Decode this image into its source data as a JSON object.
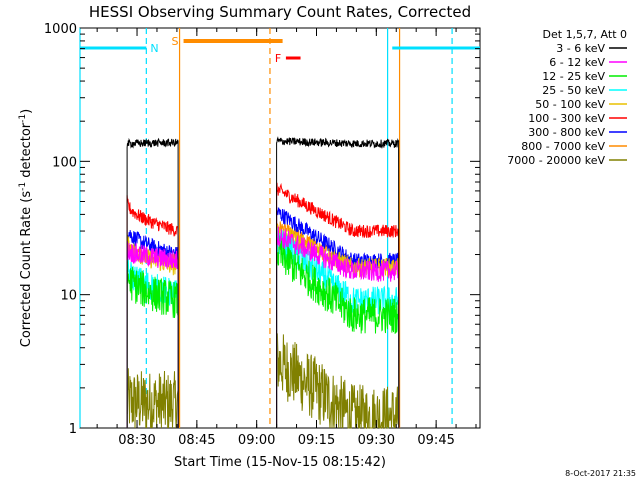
{
  "chart_data": {
    "type": "line",
    "title": "HESSI Observing Summary Count Rates, Corrected",
    "xlabel": "Start Time (15-Nov-15 08:15:42)",
    "ylabel_main": "Corrected Count Rate (s",
    "ylabel_sup1": "-1",
    "ylabel_mid": " detector",
    "ylabel_sup2": "-1",
    "ylabel_end": ")",
    "y_scale": "log",
    "ylim": [
      1,
      1000
    ],
    "xlim": [
      "08:15:42",
      "09:56:00"
    ],
    "x_ticks": [
      "08:30",
      "08:45",
      "09:00",
      "09:15",
      "09:30",
      "09:45"
    ],
    "y_ticks": [
      "1",
      "10",
      "100",
      "1000"
    ],
    "legend_header": "Det 1,5,7, Att 0",
    "legend_position": "right",
    "timestamp": "8-Oct-2017 21:35",
    "flag_labels": {
      "N": "N",
      "S": "S",
      "F": "F"
    },
    "flag_colors": {
      "N": "#00e0ff",
      "S": "#ff8c00",
      "F": "#ff0000"
    },
    "flags": {
      "N_intervals": [
        [
          "08:15:42",
          "08:32:20"
        ],
        [
          "09:34:00",
          "09:56:00"
        ]
      ],
      "S_interval": [
        "08:41:40",
        "09:06:30"
      ],
      "F_interval": [
        "09:07:20",
        "09:11:00"
      ]
    },
    "vertical_markers": [
      {
        "time": "08:15:42",
        "color": "#00e0ff",
        "style": "solid"
      },
      {
        "time": "08:32:20",
        "color": "#00e0ff",
        "style": "dashed"
      },
      {
        "time": "08:40:40",
        "color": "#ff8c00",
        "style": "solid"
      },
      {
        "time": "09:03:20",
        "color": "#ff8c00",
        "style": "dashed"
      },
      {
        "time": "09:32:50",
        "color": "#00e0ff",
        "style": "solid"
      },
      {
        "time": "09:35:50",
        "color": "#ff8c00",
        "style": "solid"
      },
      {
        "time": "09:49:00",
        "color": "#00e0ff",
        "style": "dashed"
      }
    ],
    "data_gaps": [
      [
        "08:15:42",
        "08:27:30"
      ],
      [
        "08:40:20",
        "09:05:00"
      ],
      [
        "09:35:40",
        "09:56:00"
      ]
    ],
    "segments": [
      [
        "08:27:30",
        "08:40:20"
      ],
      [
        "09:05:00",
        "09:35:40"
      ]
    ],
    "series": [
      {
        "name": "3 - 6 keV",
        "color": "#000000",
        "seg1": [
          135,
          138
        ],
        "seg2": [
          142,
          136
        ],
        "noise": 0.03,
        "bump": 0
      },
      {
        "name": "6 - 12 keV",
        "color": "#ff00ff",
        "seg1": [
          22,
          18
        ],
        "seg2": [
          28,
          15
        ],
        "noise": 0.08,
        "bump": 0
      },
      {
        "name": "12 - 25 keV",
        "color": "#00ee00",
        "seg1": [
          14,
          9
        ],
        "seg2": [
          21,
          7
        ],
        "noise": 0.14,
        "bump": 0
      },
      {
        "name": "25 - 50 keV",
        "color": "#00ffff",
        "seg1": [
          16,
          10
        ],
        "seg2": [
          26,
          9
        ],
        "noise": 0.11,
        "bump": 0
      },
      {
        "name": "50 - 100 keV",
        "color": "#e8c000",
        "seg1": [
          25,
          16
        ],
        "seg2": [
          30,
          16
        ],
        "noise": 0.07,
        "bump": 0
      },
      {
        "name": "100 - 300 keV",
        "color": "#ff0000",
        "seg1": [
          50,
          30
        ],
        "seg2": [
          62,
          30
        ],
        "noise": 0.05,
        "bump": 0
      },
      {
        "name": "300 - 800 keV",
        "color": "#0000ff",
        "seg1": [
          32,
          20
        ],
        "seg2": [
          42,
          18
        ],
        "noise": 0.06,
        "bump": 0
      },
      {
        "name": "800 - 7000 keV",
        "color": "#ff8c00",
        "seg1": [
          24,
          18
        ],
        "seg2": [
          33,
          17
        ],
        "noise": 0.05,
        "bump": 0
      },
      {
        "name": "7000 - 20000 keV",
        "color": "#808000",
        "seg1": [
          1.6,
          1.5
        ],
        "seg2": [
          3.2,
          1.2
        ],
        "noise": 0.25,
        "bump": 0
      }
    ]
  }
}
